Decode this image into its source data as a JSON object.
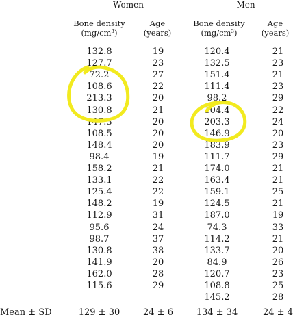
{
  "table": {
    "groups": [
      {
        "label": "Women"
      },
      {
        "label": "Men"
      }
    ],
    "subheaders": {
      "women_density_l1": "Bone density",
      "women_density_l2": "(mg/cm³)",
      "women_age_l1": "Age",
      "women_age_l2": "(years)",
      "men_density_l1": "Bone density",
      "men_density_l2": "(mg/cm³)",
      "men_age_l1": "Age",
      "men_age_l2": "(years)"
    },
    "rows": [
      {
        "w_density": "132.8",
        "w_age": "19",
        "m_density": "120.4",
        "m_age": "21"
      },
      {
        "w_density": "127.7",
        "w_age": "23",
        "m_density": "132.5",
        "m_age": "23"
      },
      {
        "w_density": "72.2",
        "w_age": "27",
        "m_density": "151.4",
        "m_age": "21"
      },
      {
        "w_density": "108.6",
        "w_age": "22",
        "m_density": "111.4",
        "m_age": "23"
      },
      {
        "w_density": "213.3",
        "w_age": "20",
        "m_density": "98.2",
        "m_age": "29"
      },
      {
        "w_density": "130.8",
        "w_age": "21",
        "m_density": "104.4",
        "m_age": "22"
      },
      {
        "w_density": "147.3",
        "w_age": "20",
        "m_density": "203.3",
        "m_age": "24"
      },
      {
        "w_density": "108.5",
        "w_age": "20",
        "m_density": "146.9",
        "m_age": "20"
      },
      {
        "w_density": "148.4",
        "w_age": "20",
        "m_density": "183.9",
        "m_age": "23"
      },
      {
        "w_density": "98.4",
        "w_age": "19",
        "m_density": "111.7",
        "m_age": "29"
      },
      {
        "w_density": "158.2",
        "w_age": "21",
        "m_density": "174.0",
        "m_age": "21"
      },
      {
        "w_density": "133.1",
        "w_age": "22",
        "m_density": "163.4",
        "m_age": "21"
      },
      {
        "w_density": "125.4",
        "w_age": "22",
        "m_density": "159.1",
        "m_age": "25"
      },
      {
        "w_density": "148.2",
        "w_age": "19",
        "m_density": "124.5",
        "m_age": "21"
      },
      {
        "w_density": "112.9",
        "w_age": "31",
        "m_density": "187.0",
        "m_age": "19"
      },
      {
        "w_density": "95.6",
        "w_age": "24",
        "m_density": "74.3",
        "m_age": "33"
      },
      {
        "w_density": "98.7",
        "w_age": "37",
        "m_density": "114.2",
        "m_age": "21"
      },
      {
        "w_density": "130.8",
        "w_age": "38",
        "m_density": "133.7",
        "m_age": "20"
      },
      {
        "w_density": "141.9",
        "w_age": "20",
        "m_density": "84.9",
        "m_age": "26"
      },
      {
        "w_density": "162.0",
        "w_age": "28",
        "m_density": "120.7",
        "m_age": "23"
      },
      {
        "w_density": "115.6",
        "w_age": "29",
        "m_density": "108.8",
        "m_age": "25"
      },
      {
        "w_density": "",
        "w_age": "",
        "m_density": "145.2",
        "m_age": "28"
      }
    ],
    "summary": {
      "label": "Mean ± SD",
      "w_density": "129 ± 30",
      "w_age": "24 ± 6",
      "m_density": "134 ± 34",
      "m_age": "24 ± 4"
    }
  },
  "annotations": {
    "highlight_color": "#f2ea1f"
  }
}
